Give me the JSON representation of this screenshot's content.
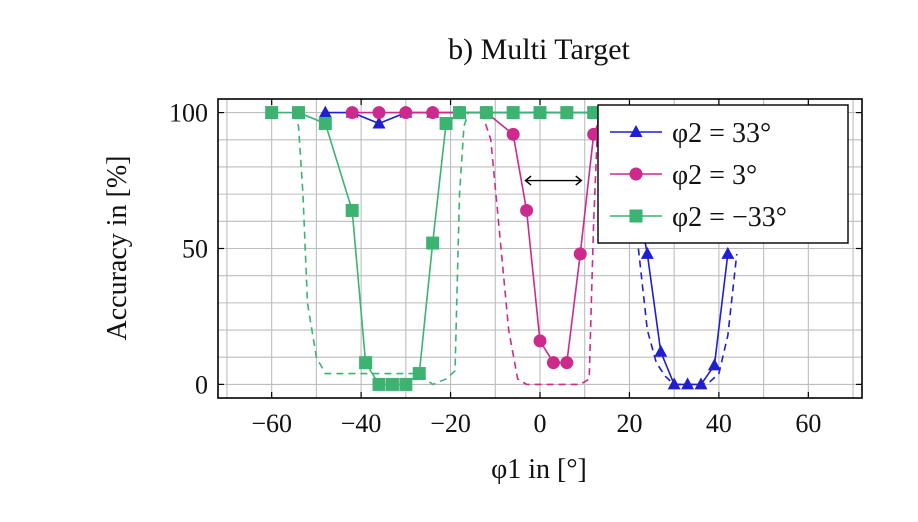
{
  "chart_data": {
    "type": "line",
    "title": "b) Multi Target",
    "xlabel": "φ1 in [°]",
    "ylabel": "Accuracy in [%]",
    "xlim": [
      -72,
      72
    ],
    "ylim": [
      -5,
      105
    ],
    "xticks": [
      -60,
      -40,
      -20,
      0,
      20,
      40,
      60
    ],
    "yticks": [
      0,
      50,
      100
    ],
    "xtick_labels": [
      "−60",
      "−40",
      "−20",
      "0",
      "20",
      "40",
      "60"
    ],
    "ytick_labels": [
      "0",
      "50",
      "100"
    ],
    "grid": true,
    "legend_position": "top-right",
    "annotation": "double-headed arrow between φ1 = −3° and φ1 = 9° at 75 %",
    "series": [
      {
        "name": "φ2 = 33°",
        "color": "#1f1fd0",
        "marker": "triangle",
        "x": [
          -48,
          -42,
          -36,
          -30,
          -24,
          -18,
          -12,
          -6,
          0,
          6,
          12,
          18,
          24,
          27,
          30,
          33,
          36,
          39,
          42
        ],
        "y": [
          100,
          100,
          96,
          100,
          100,
          100,
          100,
          100,
          100,
          100,
          100,
          100,
          48,
          12,
          0,
          0,
          0,
          7,
          48
        ],
        "dashed_x": [
          22,
          24,
          26,
          28,
          30,
          32,
          34,
          36,
          38,
          40,
          42,
          44
        ],
        "dashed_y": [
          50,
          20,
          8,
          3,
          0,
          0,
          0,
          0,
          1,
          4,
          18,
          48
        ]
      },
      {
        "name": "φ2 = 3°",
        "color": "#cc2a8c",
        "marker": "circle",
        "x": [
          -42,
          -36,
          -30,
          -24,
          -18,
          -12,
          -6,
          -3,
          0,
          3,
          6,
          9,
          12,
          14
        ],
        "y": [
          100,
          100,
          100,
          100,
          100,
          100,
          92,
          64,
          16,
          8,
          8,
          48,
          92,
          100
        ],
        "dashed_x": [
          -13,
          -11,
          -9,
          -7,
          -5,
          -3,
          0,
          3,
          6,
          9,
          11,
          12,
          13
        ],
        "dashed_y": [
          100,
          90,
          55,
          20,
          2,
          0,
          0,
          0,
          0,
          0,
          2,
          60,
          100
        ]
      },
      {
        "name": "φ2 = −33°",
        "color": "#3cb371",
        "marker": "square",
        "x": [
          -60,
          -54,
          -48,
          -42,
          -39,
          -36,
          -33,
          -30,
          -27,
          -24,
          -21,
          -18,
          -12,
          -6,
          0,
          6,
          12
        ],
        "y": [
          100,
          100,
          96,
          64,
          8,
          0,
          0,
          0,
          4,
          52,
          96,
          100,
          100,
          100,
          100,
          100,
          100
        ],
        "dashed_x": [
          -55,
          -54,
          -53,
          -52,
          -50,
          -48,
          -45,
          -42,
          -39,
          -36,
          -33,
          -30,
          -27,
          -24,
          -21,
          -19,
          -18,
          -17,
          -16
        ],
        "dashed_y": [
          100,
          95,
          70,
          30,
          10,
          4,
          4,
          4,
          4,
          4,
          4,
          4,
          4,
          0,
          2,
          5,
          70,
          95,
          100
        ]
      }
    ]
  }
}
